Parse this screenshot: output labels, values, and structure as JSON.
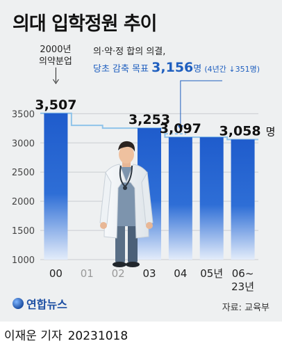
{
  "title": "의대 입학정원 추이",
  "annotations": {
    "note_2000_line1": "2000년",
    "note_2000_line2": "의약분업",
    "agreement_line1": "의·약·정 합의 의결,",
    "agreement_prefix": "당초 감축 목표",
    "agreement_value": "3,156",
    "agreement_unit": "명",
    "agreement_detail": "(4년간 ↓351명)"
  },
  "footer": {
    "logo_text": "연합뉴스",
    "source": "자료: 교육부",
    "author": "이재운 기자",
    "date": "20231018"
  },
  "colors": {
    "bar_top": "#1f5ccc",
    "bar_bottom": "#e3ecfa",
    "target_line": "#8fc3ea",
    "background": "#eef0f1",
    "accent_text": "#1f5fbf"
  },
  "chart_data": {
    "type": "bar",
    "categories": [
      "00",
      "01",
      "02",
      "03",
      "04",
      "05년",
      "06~23년"
    ],
    "category_emphasis": [
      true,
      false,
      false,
      true,
      true,
      true,
      true
    ],
    "values": [
      3507,
      null,
      null,
      3253,
      3097,
      3097,
      3058
    ],
    "value_labels": [
      "3,507",
      "",
      "",
      "3,253",
      "3,097",
      "",
      "3,058"
    ],
    "value_unit_label": "명",
    "target_line": {
      "value": 3156,
      "label": "3,156"
    },
    "ylim": [
      1000,
      3600
    ],
    "yticks": [
      1000,
      1500,
      2000,
      2500,
      3000,
      3500
    ],
    "grid": true,
    "xlabel": "",
    "ylabel": ""
  }
}
